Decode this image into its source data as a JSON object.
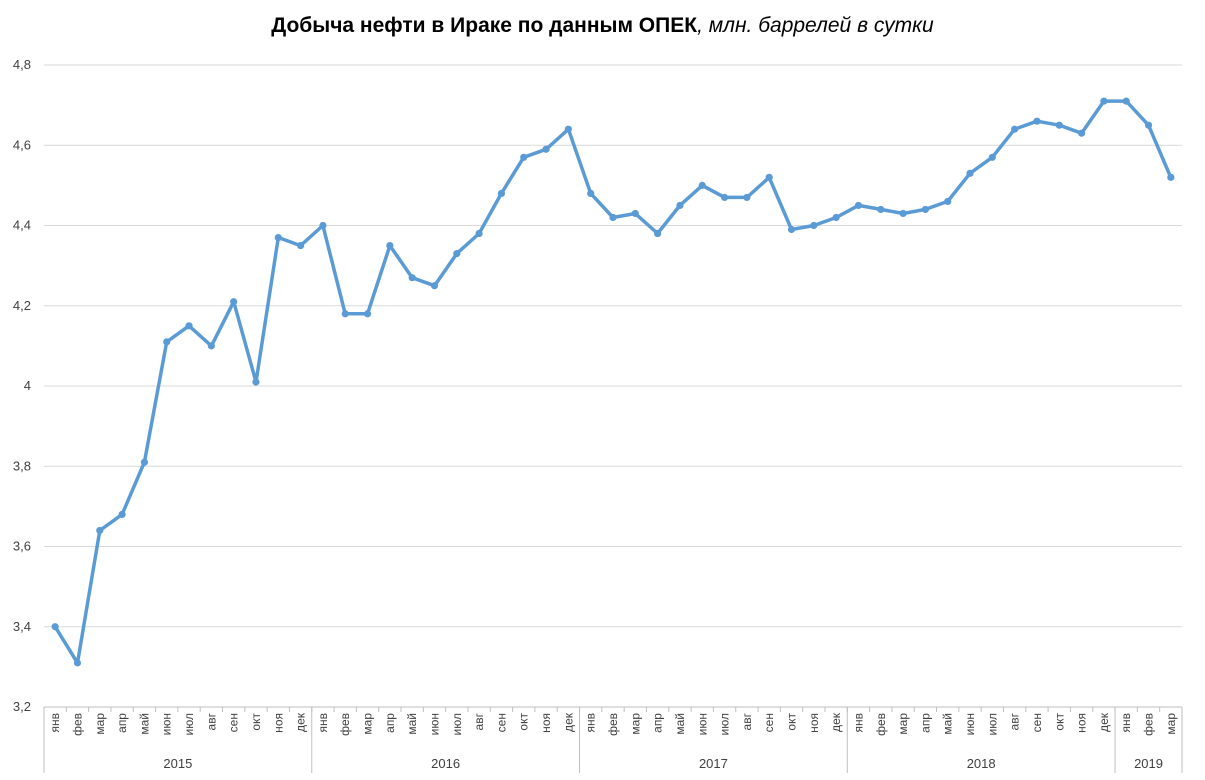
{
  "chart_data": {
    "type": "line",
    "title": "Добыча нефти в Ираке по данным ОПЕК",
    "subtitle": ", млн. баррелей в сутки",
    "xlabel": "",
    "ylabel": "",
    "ylim": [
      3.2,
      4.8
    ],
    "yticks": [
      "4,8",
      "4,6",
      "4,4",
      "4,2",
      "4",
      "3,8",
      "3,6",
      "3,4",
      "3,2"
    ],
    "grid": true,
    "legend": "none",
    "color": "#5B9BD5",
    "groups": [
      {
        "year": "2015",
        "months": [
          "янв",
          "фев",
          "мар",
          "апр",
          "май",
          "июн",
          "июл",
          "авг",
          "сен",
          "окт",
          "ноя",
          "дек"
        ]
      },
      {
        "year": "2016",
        "months": [
          "янв",
          "фев",
          "мар",
          "апр",
          "май",
          "июн",
          "июл",
          "авг",
          "сен",
          "окт",
          "ноя",
          "дек"
        ]
      },
      {
        "year": "2017",
        "months": [
          "янв",
          "фев",
          "мар",
          "апр",
          "май",
          "июн",
          "июл",
          "авг",
          "сен",
          "окт",
          "ноя",
          "дек"
        ]
      },
      {
        "year": "2018",
        "months": [
          "янв",
          "фев",
          "мар",
          "апр",
          "май",
          "июн",
          "июл",
          "авг",
          "сен",
          "окт",
          "ноя",
          "дек"
        ]
      },
      {
        "year": "2019",
        "months": [
          "янв",
          "фев",
          "мар"
        ]
      }
    ],
    "values": [
      3.4,
      3.31,
      3.64,
      3.68,
      3.81,
      4.11,
      4.15,
      4.1,
      4.21,
      4.01,
      4.37,
      4.35,
      4.4,
      4.18,
      4.18,
      4.35,
      4.27,
      4.25,
      4.33,
      4.38,
      4.48,
      4.57,
      4.59,
      4.64,
      4.48,
      4.42,
      4.43,
      4.38,
      4.45,
      4.5,
      4.47,
      4.47,
      4.52,
      4.39,
      4.4,
      4.42,
      4.45,
      4.44,
      4.43,
      4.44,
      4.46,
      4.53,
      4.57,
      4.64,
      4.66,
      4.65,
      4.63,
      4.71,
      4.71,
      4.65,
      4.52
    ]
  }
}
